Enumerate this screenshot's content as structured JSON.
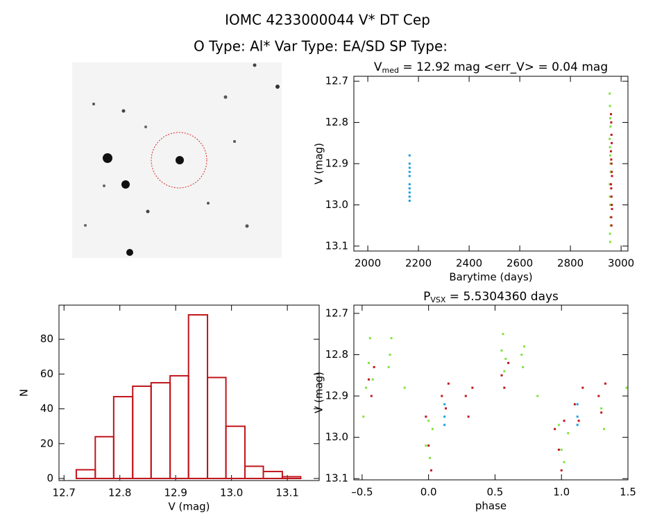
{
  "header": {
    "title": "IOMC 4233000044   V* DT Cep",
    "subtitle": "O Type: Al*  Var Type: EA/SD  SP Type:"
  },
  "chart_data": [
    {
      "type": "scatter",
      "title": [
        "V",
        "med",
        " = 12.92 mag <err_V> = 0.04 mag"
      ],
      "x_label": "Barytime (days)",
      "y_label": "V (mag)",
      "xlim": [
        1945,
        3027
      ],
      "xticks": [
        2000,
        2200,
        2400,
        2600,
        2800,
        3000
      ],
      "ylim": [
        13.112,
        12.688
      ],
      "yticks": [
        {
          "value": 12.7,
          "label": "12.7"
        },
        {
          "value": 12.8,
          "label": "12.8"
        },
        {
          "value": 12.9,
          "label": "12.9"
        },
        {
          "value": 13.0,
          "label": "13.0"
        },
        {
          "value": 13.1,
          "label": "13.1"
        }
      ],
      "series": [
        {
          "color": "#1a9fd9",
          "x": [
            2165,
            2165,
            2165,
            2165,
            2165,
            2165,
            2165,
            2165,
            2165,
            2165
          ],
          "values": [
            12.88,
            12.9,
            12.91,
            12.92,
            12.93,
            12.95,
            12.96,
            12.97,
            12.98,
            12.99
          ]
        },
        {
          "color": "#7fe33a",
          "x": [
            2955,
            2956,
            2957,
            2958,
            2955,
            2956,
            2957,
            2958,
            2959,
            2955,
            2956,
            2957,
            2958,
            2959,
            2956,
            2957
          ],
          "values": [
            12.73,
            12.76,
            12.79,
            12.81,
            12.84,
            12.86,
            12.88,
            12.9,
            12.92,
            12.95,
            12.98,
            13.0,
            13.03,
            13.05,
            13.07,
            13.09
          ]
        },
        {
          "color": "#c0141a",
          "x": [
            2960,
            2961,
            2962,
            2963,
            2960,
            2961,
            2962,
            2963,
            2964,
            2960,
            2961,
            2962,
            2963,
            2964,
            2961,
            2962
          ],
          "values": [
            12.78,
            12.8,
            12.83,
            12.85,
            12.87,
            12.89,
            12.9,
            12.92,
            12.93,
            12.95,
            12.96,
            12.98,
            13.0,
            13.01,
            13.03,
            13.05
          ]
        }
      ]
    },
    {
      "type": "histogram",
      "x_label": "V (mag)",
      "y_label": "N",
      "color": "#c0141a",
      "bins": [
        12.722,
        12.756,
        12.789,
        12.823,
        12.856,
        12.89,
        12.923,
        12.957,
        12.99,
        13.024,
        13.057,
        13.091,
        13.124
      ],
      "values": [
        5,
        24,
        47,
        53,
        55,
        59,
        94,
        58,
        30,
        7,
        4,
        1
      ],
      "xlim": [
        12.691,
        13.157
      ],
      "xticks": [
        {
          "value": 12.7,
          "label": "12.7"
        },
        {
          "value": 12.8,
          "label": "12.8"
        },
        {
          "value": 12.9,
          "label": "12.9"
        },
        {
          "value": 13.0,
          "label": "13.0"
        },
        {
          "value": 13.1,
          "label": "13.1"
        }
      ],
      "ylim": [
        -1.2,
        99.6
      ],
      "yticks": [
        0,
        20,
        40,
        60,
        80
      ]
    },
    {
      "type": "scatter",
      "title": [
        "P",
        "VSX",
        " = 5.5304360 days"
      ],
      "x_label": "phase",
      "y_label": "V (mag)",
      "xlim": [
        -0.562,
        1.5
      ],
      "xticks": [
        {
          "value": -0.5,
          "label": "–0.5"
        },
        {
          "value": 0.0,
          "label": "0.0"
        },
        {
          "value": 0.5,
          "label": "0.5"
        },
        {
          "value": 1.0,
          "label": "1.0"
        },
        {
          "value": 1.5,
          "label": "1.5"
        }
      ],
      "ylim": [
        13.103,
        12.68
      ],
      "yticks": [
        {
          "value": 12.7,
          "label": "12.7"
        },
        {
          "value": 12.8,
          "label": "12.8"
        },
        {
          "value": 12.9,
          "label": "12.9"
        },
        {
          "value": 13.0,
          "label": "13.0"
        },
        {
          "value": 13.1,
          "label": "13.1"
        }
      ],
      "series": [
        {
          "color": "#1a9fd9",
          "x": [
            0.12,
            0.12,
            0.12,
            1.12,
            1.12,
            1.12
          ],
          "values": [
            12.92,
            12.95,
            12.97,
            12.92,
            12.95,
            12.97
          ]
        },
        {
          "color": "#7fe33a",
          "x": [
            -0.49,
            -0.47,
            -0.45,
            -0.44,
            -0.42,
            -0.3,
            -0.29,
            -0.28,
            -0.18,
            0.0,
            -0.02,
            0.01,
            0.03,
            0.55,
            0.56,
            0.57,
            0.58,
            0.7,
            0.71,
            0.72,
            0.82,
            0.98,
            1.0,
            1.02,
            1.05,
            1.3,
            1.32,
            1.49
          ],
          "values": [
            12.95,
            12.88,
            12.82,
            12.76,
            12.86,
            12.83,
            12.8,
            12.76,
            12.88,
            12.96,
            13.02,
            13.05,
            12.98,
            12.79,
            12.75,
            12.84,
            12.81,
            12.8,
            12.83,
            12.78,
            12.9,
            12.97,
            13.03,
            13.06,
            12.99,
            12.93,
            12.98,
            12.88
          ]
        },
        {
          "color": "#c0141a",
          "x": [
            -0.45,
            -0.43,
            -0.41,
            -0.02,
            0.0,
            0.02,
            0.1,
            0.13,
            0.15,
            0.28,
            0.3,
            0.33,
            0.55,
            0.57,
            0.6,
            0.95,
            0.98,
            1.0,
            1.02,
            1.1,
            1.13,
            1.16,
            1.28,
            1.3,
            1.33
          ],
          "values": [
            12.86,
            12.9,
            12.83,
            12.95,
            13.02,
            13.08,
            12.9,
            12.93,
            12.87,
            12.9,
            12.95,
            12.88,
            12.85,
            12.88,
            12.82,
            12.98,
            13.03,
            13.08,
            12.96,
            12.92,
            12.96,
            12.88,
            12.9,
            12.94,
            12.87
          ]
        }
      ]
    }
  ]
}
